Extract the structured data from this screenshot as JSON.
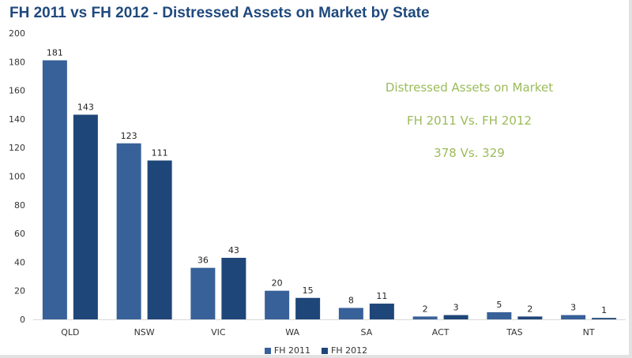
{
  "title": "FH 2011 vs FH 2012 - Distressed Assets on Market by State",
  "annotations": [
    "Distressed Assets on Market",
    "FH 2011 Vs. FH 2012",
    "378 Vs. 329"
  ],
  "colors": {
    "fh2011": "#386199",
    "fh2012": "#1f4679",
    "annotation": "#9bbb59",
    "title": "#1f497d"
  },
  "chart_data": {
    "type": "bar",
    "categories": [
      "QLD",
      "NSW",
      "VIC",
      "WA",
      "SA",
      "ACT",
      "TAS",
      "NT"
    ],
    "series": [
      {
        "name": "FH 2011",
        "values": [
          181,
          123,
          36,
          20,
          8,
          2,
          5,
          3
        ]
      },
      {
        "name": "FH 2012",
        "values": [
          143,
          111,
          43,
          15,
          11,
          3,
          2,
          1
        ]
      }
    ],
    "ylim": [
      0,
      200
    ],
    "yticks": [
      0,
      20,
      40,
      60,
      80,
      100,
      120,
      140,
      160,
      180,
      200
    ],
    "grid": false,
    "legend": "bottom"
  }
}
